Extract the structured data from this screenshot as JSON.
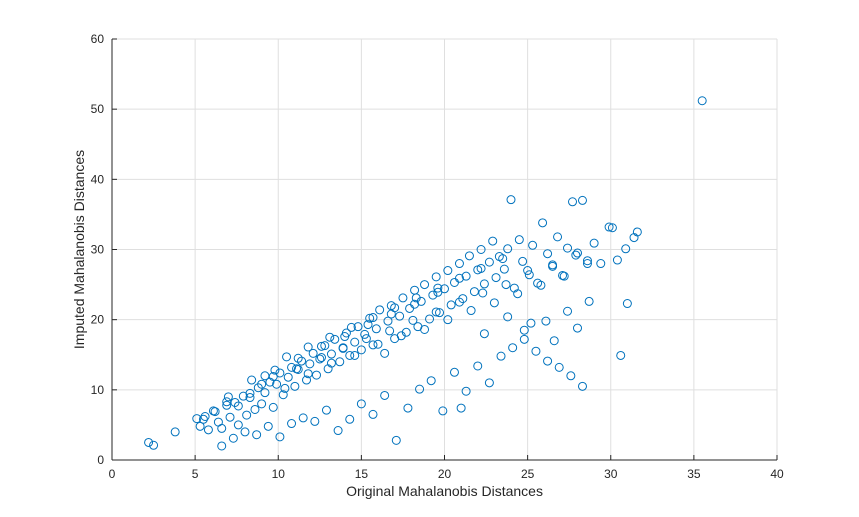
{
  "chart_data": {
    "type": "scatter",
    "title": "",
    "xlabel": "Original Mahalanobis Distances",
    "ylabel": "Imputed Mahalanobis Distances",
    "xlim": [
      0,
      40
    ],
    "ylim": [
      0,
      60
    ],
    "xticks": [
      0,
      5,
      10,
      15,
      20,
      25,
      30,
      35,
      40
    ],
    "yticks": [
      0,
      10,
      20,
      30,
      40,
      50,
      60
    ],
    "grid": true,
    "marker": "open-circle",
    "colors": {
      "marker": "#0072BD",
      "grid": "#dfdfdf",
      "axis": "#262626"
    },
    "series": [
      {
        "x": [
          2.2,
          2.5,
          3.8,
          5.1,
          5.3,
          5.6,
          5.8,
          6.1,
          6.4,
          6.6,
          6.9,
          7.1,
          7.4,
          7.6,
          7.9,
          8.1,
          8.3,
          8.6,
          8.8,
          9.0,
          9.2,
          9.5,
          9.7,
          9.9,
          10.1,
          10.3,
          10.6,
          10.8,
          11.0,
          11.2,
          11.4,
          11.7,
          11.9,
          12.1,
          12.3,
          12.6,
          12.8,
          13.0,
          13.2,
          13.4,
          13.7,
          13.9,
          14.1,
          14.3,
          14.6,
          14.8,
          15.0,
          15.2,
          15.5,
          15.7,
          15.9,
          16.1,
          16.4,
          16.6,
          16.8,
          17.0,
          17.3,
          17.5,
          17.7,
          17.9,
          18.2,
          18.4,
          18.6,
          18.8,
          19.1,
          19.3,
          19.5,
          19.7,
          20.0,
          20.2,
          20.4,
          20.6,
          20.9,
          21.1,
          21.3,
          21.5,
          21.8,
          22.0,
          22.2,
          22.4,
          22.7,
          22.9,
          23.1,
          23.3,
          23.6,
          23.8,
          24.0,
          24.2,
          24.5,
          24.7,
          25.0,
          25.3,
          25.6,
          25.9,
          26.2,
          26.5,
          26.8,
          27.1,
          27.4,
          27.7,
          28.0,
          28.3,
          28.6,
          29.0,
          29.4,
          29.9,
          30.4,
          30.9,
          31.4,
          6.6,
          7.3,
          8.0,
          8.7,
          9.4,
          10.1,
          10.8,
          11.5,
          12.2,
          12.9,
          13.6,
          14.3,
          15.0,
          15.7,
          16.4,
          17.1,
          17.8,
          18.5,
          19.2,
          19.9,
          20.6,
          21.3,
          22.0,
          22.7,
          23.4,
          24.1,
          24.8,
          25.5,
          26.2,
          26.9,
          27.6,
          28.3,
          5.5,
          6.2,
          6.9,
          7.6,
          8.3,
          9.0,
          9.7,
          10.4,
          11.1,
          11.8,
          12.5,
          13.2,
          13.9,
          14.6,
          15.3,
          16.0,
          16.7,
          17.4,
          18.1,
          18.8,
          19.5,
          20.2,
          20.9,
          21.6,
          22.3,
          23.0,
          23.7,
          24.4,
          25.1,
          25.8,
          26.5,
          27.2,
          27.9,
          28.6,
          30.1,
          31.0,
          35.5,
          7.0,
          8.4,
          9.8,
          11.2,
          12.6,
          14.0,
          15.4,
          16.8,
          18.2,
          19.6,
          21.0,
          22.4,
          23.8,
          25.2,
          26.6,
          28.0,
          30.6,
          31.6,
          9.2,
          10.5,
          11.8,
          13.1,
          14.4,
          15.7,
          17.0,
          18.3,
          19.6,
          20.9,
          22.2,
          23.5,
          24.8,
          26.1,
          27.4,
          28.7
        ],
        "y": [
          2.5,
          2.1,
          4.0,
          5.9,
          4.8,
          6.2,
          4.3,
          7.0,
          5.4,
          2.0,
          7.8,
          6.1,
          8.2,
          5.0,
          9.1,
          6.4,
          8.9,
          7.2,
          10.3,
          8.0,
          9.6,
          11.1,
          7.5,
          10.8,
          12.4,
          9.3,
          11.8,
          13.2,
          10.5,
          12.9,
          14.1,
          11.4,
          13.7,
          15.2,
          12.1,
          14.6,
          16.3,
          13.0,
          15.1,
          17.2,
          14.0,
          16.0,
          18.1,
          14.9,
          16.8,
          19.0,
          15.7,
          17.9,
          20.2,
          16.4,
          18.7,
          21.4,
          15.2,
          19.8,
          22.0,
          17.3,
          20.5,
          23.1,
          18.2,
          21.6,
          24.2,
          19.0,
          22.6,
          25.0,
          20.1,
          23.5,
          26.1,
          21.0,
          24.4,
          27.0,
          22.1,
          25.3,
          28.0,
          23.0,
          26.2,
          29.1,
          24.0,
          27.1,
          30.0,
          25.1,
          28.2,
          31.2,
          26.0,
          29.0,
          27.2,
          30.1,
          37.1,
          24.5,
          31.4,
          28.3,
          27.0,
          30.6,
          25.2,
          33.8,
          29.4,
          27.6,
          31.8,
          26.3,
          30.2,
          36.8,
          29.5,
          37.0,
          28.4,
          30.9,
          28.0,
          33.2,
          28.5,
          30.1,
          31.7,
          4.5,
          3.1,
          4.0,
          3.6,
          4.8,
          3.3,
          5.2,
          6.0,
          5.5,
          7.1,
          4.2,
          5.8,
          8.0,
          6.5,
          9.2,
          2.8,
          7.4,
          10.1,
          11.3,
          7.0,
          12.5,
          9.8,
          13.4,
          11.0,
          14.8,
          16.0,
          17.2,
          15.5,
          14.1,
          13.2,
          12.0,
          10.5,
          5.8,
          6.9,
          8.3,
          7.7,
          9.5,
          10.8,
          11.9,
          10.2,
          13.0,
          12.3,
          14.4,
          13.8,
          15.9,
          14.9,
          17.3,
          16.5,
          18.4,
          17.7,
          19.9,
          18.6,
          21.1,
          20.0,
          22.5,
          21.3,
          23.8,
          22.4,
          25.0,
          23.7,
          26.4,
          24.9,
          27.8,
          26.2,
          29.2,
          28.0,
          33.1,
          22.3,
          51.2,
          9.0,
          11.4,
          12.8,
          14.5,
          16.2,
          17.6,
          19.3,
          20.8,
          22.2,
          23.9,
          7.4,
          18.0,
          20.4,
          19.5,
          17.0,
          18.8,
          14.9,
          32.5,
          12.0,
          14.7,
          16.1,
          17.5,
          18.9,
          20.3,
          21.7,
          23.1,
          24.5,
          25.9,
          27.3,
          28.7,
          18.5,
          19.8,
          21.2,
          22.6
        ]
      }
    ]
  }
}
